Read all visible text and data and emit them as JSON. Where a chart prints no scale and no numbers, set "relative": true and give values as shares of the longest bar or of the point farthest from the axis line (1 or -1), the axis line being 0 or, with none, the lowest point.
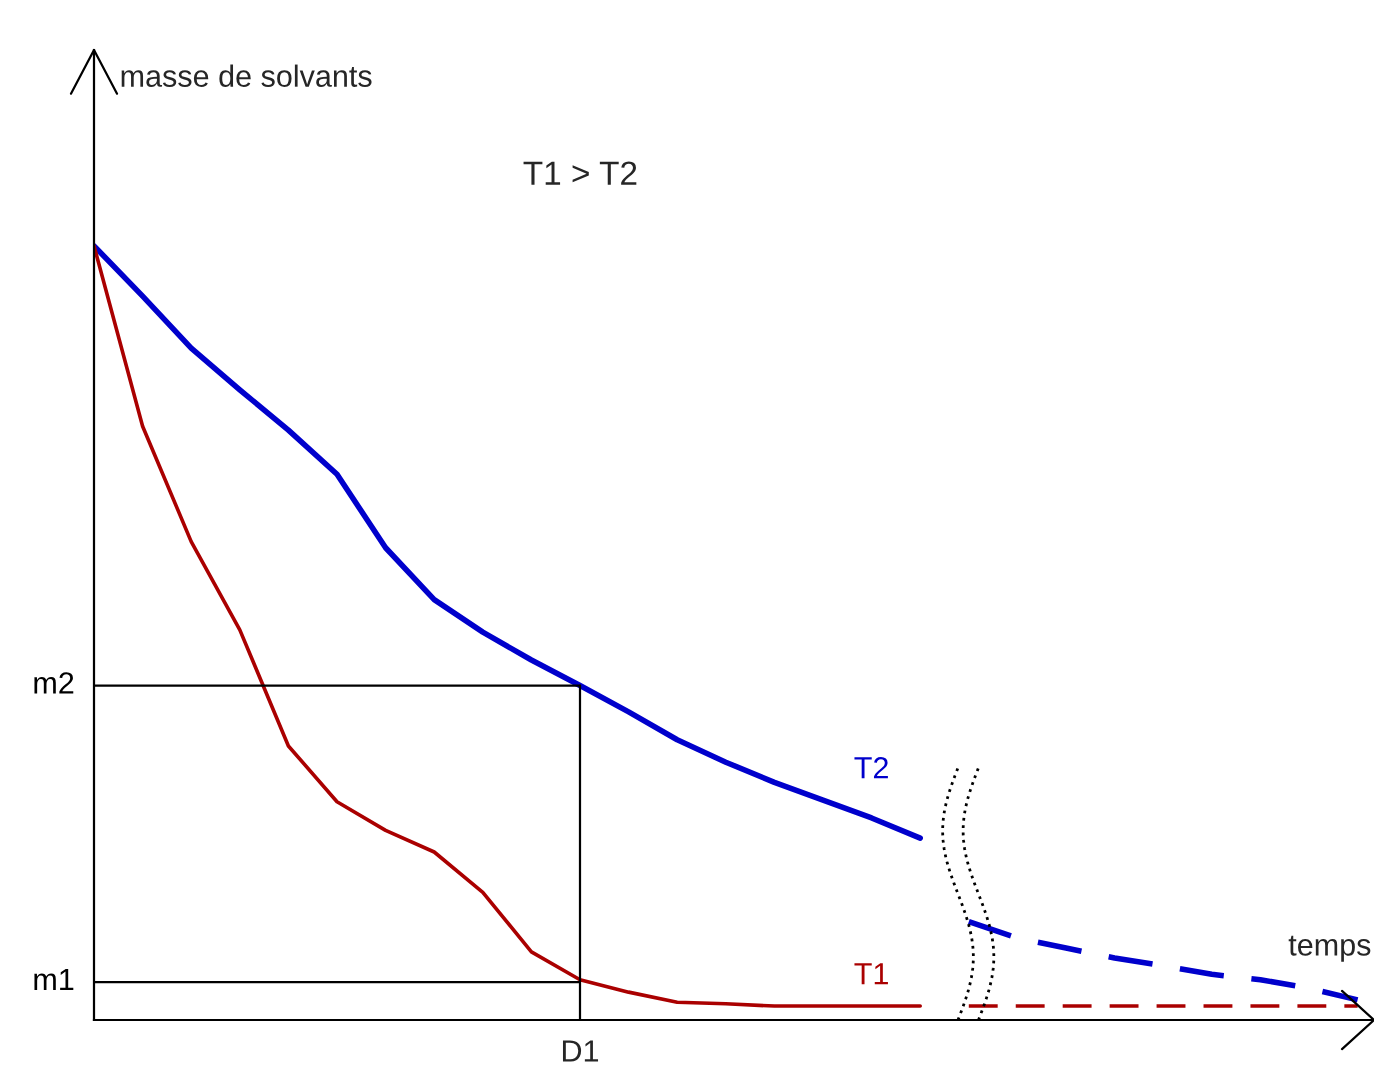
{
  "chart_data": {
    "type": "line",
    "relative": true,
    "xlabel": "temps",
    "annotations": [
      "masse de solvants",
      "T1 > T2",
      "D1"
    ],
    "categories": [
      null,
      null,
      null,
      null,
      null,
      null,
      null,
      null,
      null,
      null,
      null,
      null,
      null,
      null,
      null,
      null,
      null,
      null,
      null,
      null,
      null,
      null,
      null,
      null,
      null,
      null,
      null
    ],
    "legend": false,
    "marker": "none",
    "series": [
      {
        "name": "T2",
        "color": "#0000cc",
        "line_style": "solid",
        "values": [
          1.0,
          0.935,
          0.868,
          0.814,
          0.762,
          0.705,
          0.61,
          0.543,
          0.501,
          0.465,
          0.432,
          0.398,
          0.362,
          0.333,
          0.307,
          0.284,
          0.261,
          0.235,
          null,
          null,
          null,
          null,
          null,
          null,
          null,
          null,
          null
        ]
      },
      {
        "color": "#0000cc",
        "line_style": "dashed",
        "values": [
          null,
          null,
          null,
          null,
          null,
          null,
          null,
          null,
          null,
          null,
          null,
          null,
          null,
          null,
          null,
          null,
          null,
          null,
          0.127,
          0.106,
          0.093,
          0.08,
          0.07,
          0.059,
          0.052,
          0.041,
          0.026
        ]
      },
      {
        "name": "T1",
        "color": "#aa0000",
        "line_style": "solid",
        "values": [
          1.0,
          0.767,
          0.618,
          0.504,
          0.354,
          0.282,
          0.245,
          0.217,
          0.165,
          0.088,
          0.052,
          0.036,
          0.023,
          0.021,
          0.018,
          0.018,
          0.018,
          0.018,
          null,
          null,
          null,
          null,
          null,
          null,
          null,
          null,
          null
        ]
      },
      {
        "color": "#aa0000",
        "line_style": "dashed",
        "values": [
          null,
          null,
          null,
          null,
          null,
          null,
          null,
          null,
          null,
          null,
          null,
          null,
          null,
          null,
          null,
          null,
          null,
          null,
          0.018,
          0.018,
          0.018,
          0.018,
          0.018,
          0.018,
          0.018,
          0.018,
          0.018
        ]
      }
    ],
    "ref_lines": [
      {
        "axis": "y",
        "value": 0.432,
        "label": "m2",
        "color": "#000000"
      },
      {
        "axis": "y",
        "value": 0.049,
        "label": "m1",
        "color": "#000000"
      }
    ]
  }
}
